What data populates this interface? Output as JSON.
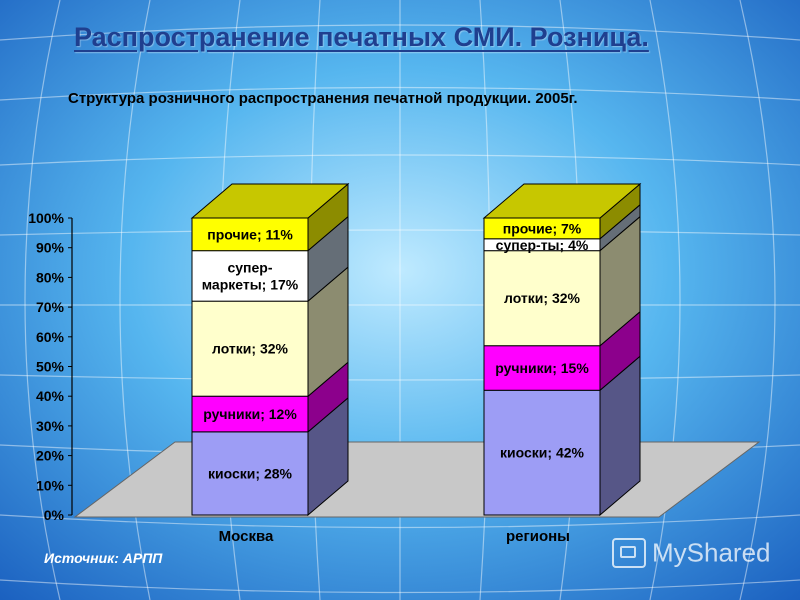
{
  "slide": {
    "title": "Распространение печатных СМИ. Розница.",
    "source": "Источник: АРПП",
    "watermark": "MyShared"
  },
  "colors": {
    "kiosks": "#9d9df5",
    "vendors": "#ff00ff",
    "stalls": "#ffffcc",
    "supermarkets": "#ffffff",
    "other": "#ffff00",
    "floor": "#c8c8c8"
  },
  "chart_data": {
    "type": "bar",
    "stacked": true,
    "three_d": true,
    "title": "Структура розничного распространения печатной продукции. 2005г.",
    "categories": [
      "Москва",
      "регионы"
    ],
    "yticks": [
      "0%",
      "10%",
      "20%",
      "30%",
      "40%",
      "50%",
      "60%",
      "70%",
      "80%",
      "90%",
      "100%"
    ],
    "ylim": [
      0,
      100
    ],
    "series": [
      {
        "key": "kiosks",
        "values": [
          28,
          42
        ],
        "labels": [
          "киоски; 28%",
          "киоски; 42%"
        ]
      },
      {
        "key": "vendors",
        "values": [
          12,
          15
        ],
        "labels": [
          "ручники; 12%",
          "ручники; 15%"
        ]
      },
      {
        "key": "stalls",
        "values": [
          32,
          32
        ],
        "labels": [
          "лотки; 32%",
          "лотки; 32%"
        ]
      },
      {
        "key": "supermarkets",
        "values": [
          17,
          4
        ],
        "labels": [
          "супер-\nмаркеты; 17%",
          "супер-ты; 4%"
        ]
      },
      {
        "key": "other",
        "values": [
          11,
          7
        ],
        "labels": [
          "прочие; 11%",
          "прочие; 7%"
        ]
      }
    ]
  }
}
